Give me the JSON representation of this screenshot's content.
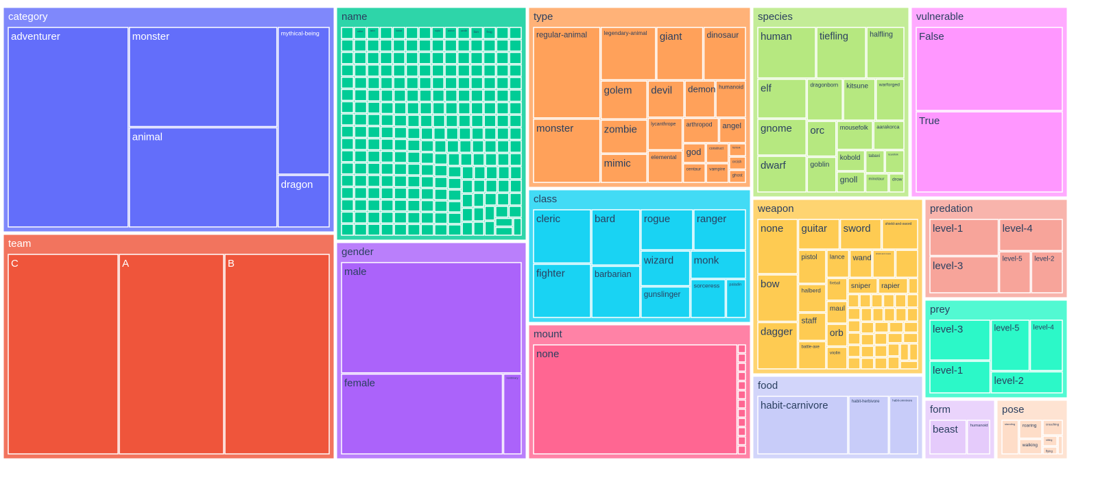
{
  "chart_data": {
    "type": "treemap",
    "title": "",
    "groups": [
      {
        "label": "category",
        "color": "#636EFA",
        "text_color": "#ffffff",
        "children": [
          {
            "label": "adventurer",
            "value": 44
          },
          {
            "label": "monster",
            "value": 27
          },
          {
            "label": "animal",
            "value": 27
          },
          {
            "label": "mythical-being",
            "value": 14
          },
          {
            "label": "dragon",
            "value": 5
          }
        ]
      },
      {
        "label": "team",
        "color": "#EF553B",
        "text_color": "#ffffff",
        "children": [
          {
            "label": "C",
            "value": 40
          },
          {
            "label": "A",
            "value": 38
          },
          {
            "label": "B",
            "value": 38
          }
        ]
      },
      {
        "label": "name",
        "color": "#00CC96",
        "text_color": "#2a3f5f",
        "children": [
          {
            "label": "leviathan",
            "value": 1
          },
          {
            "label": "nithe",
            "value": 1
          },
          {
            "label": "fafnir",
            "value": 1
          },
          {
            "label": "cyclops",
            "value": 1
          },
          {
            "label": "tiamat",
            "value": 1
          },
          {
            "label": "hoodoll",
            "value": 1
          },
          {
            "label": "abeloth",
            "value": 1
          },
          {
            "label": "raptor",
            "value": 1
          },
          {
            "label": "archon",
            "value": 1
          },
          {
            "label": "candle",
            "value": 1
          },
          {
            "label": "lion",
            "value": 1
          },
          {
            "label": "frog",
            "value": 1
          }
        ],
        "filler_count": 222
      },
      {
        "label": "gender",
        "color": "#AB63FA",
        "text_color": "#2a3f5f",
        "children": [
          {
            "label": "male",
            "value": 66
          },
          {
            "label": "female",
            "value": 43
          },
          {
            "label": "nonbinary",
            "value": 5
          }
        ]
      },
      {
        "label": "type",
        "color": "#FFA15A",
        "text_color": "#2a3f5f",
        "children": [
          {
            "label": "regular-animal",
            "value": 27
          },
          {
            "label": "monster",
            "value": 19
          },
          {
            "label": "legendary-animal",
            "value": 13
          },
          {
            "label": "giant",
            "value": 11
          },
          {
            "label": "dinosaur",
            "value": 10
          },
          {
            "label": "golem",
            "value": 8
          },
          {
            "label": "mimic",
            "value": 6
          },
          {
            "label": "demon",
            "value": 5
          },
          {
            "label": "humanoid",
            "value": 5
          },
          {
            "label": "zombie",
            "value": 7
          },
          {
            "label": "lycanthrope",
            "value": 5
          },
          {
            "label": "arthropod",
            "value": 4
          },
          {
            "label": "angel",
            "value": 3
          },
          {
            "label": "devil",
            "value": 6
          },
          {
            "label": "god",
            "value": 2
          },
          {
            "label": "centaur",
            "value": 2
          },
          {
            "label": "construct",
            "value": 2
          },
          {
            "label": "elemental",
            "value": 5
          },
          {
            "label": "vampire",
            "value": 2
          },
          {
            "label": "fishfolk",
            "value": 1
          },
          {
            "label": "orcish",
            "value": 1
          },
          {
            "label": "ghost",
            "value": 1
          }
        ]
      },
      {
        "label": "class",
        "color": "#19D3F3",
        "text_color": "#2a3f5f",
        "children": [
          {
            "label": "cleric",
            "value": 16
          },
          {
            "label": "fighter",
            "value": 16
          },
          {
            "label": "bard",
            "value": 14
          },
          {
            "label": "barbarian",
            "value": 13
          },
          {
            "label": "rogue",
            "value": 11
          },
          {
            "label": "ranger",
            "value": 11
          },
          {
            "label": "wizard",
            "value": 9
          },
          {
            "label": "gunslinger",
            "value": 8
          },
          {
            "label": "monk",
            "value": 8
          },
          {
            "label": "sorceress",
            "value": 7
          },
          {
            "label": "paladin",
            "value": 4
          }
        ]
      },
      {
        "label": "mount",
        "color": "#FF6692",
        "text_color": "#2a3f5f",
        "children": [
          {
            "label": "none",
            "value": 100
          }
        ],
        "filler_count": 12
      },
      {
        "label": "species",
        "color": "#B6E880",
        "text_color": "#2a3f5f",
        "children": [
          {
            "label": "human",
            "value": 20
          },
          {
            "label": "tiefling",
            "value": 17
          },
          {
            "label": "halfling",
            "value": 13
          },
          {
            "label": "elf",
            "value": 13
          },
          {
            "label": "gnome",
            "value": 12
          },
          {
            "label": "dwarf",
            "value": 12
          },
          {
            "label": "dragonborn",
            "value": 10
          },
          {
            "label": "kitsune",
            "value": 9
          },
          {
            "label": "warforged",
            "value": 8
          },
          {
            "label": "orc",
            "value": 7
          },
          {
            "label": "goblin",
            "value": 7
          },
          {
            "label": "aarakorca",
            "value": 6
          },
          {
            "label": "mousefolk",
            "value": 7
          },
          {
            "label": "kobold",
            "value": 4
          },
          {
            "label": "gnoll",
            "value": 4
          },
          {
            "label": "tabaxi",
            "value": 3
          },
          {
            "label": "lizardfolk",
            "value": 3
          },
          {
            "label": "minotaur",
            "value": 3
          },
          {
            "label": "drow",
            "value": 2
          }
        ]
      },
      {
        "label": "vulnerable",
        "color": "#FF97FF",
        "text_color": "#2a3f5f",
        "children": [
          {
            "label": "False",
            "value": 58
          },
          {
            "label": "True",
            "value": 56
          }
        ]
      },
      {
        "label": "weapon",
        "color": "#FECB52",
        "text_color": "#2a3f5f",
        "children": [
          {
            "label": "none",
            "value": 14
          },
          {
            "label": "bow",
            "value": 12
          },
          {
            "label": "dagger",
            "value": 12
          },
          {
            "label": "guitar",
            "value": 8
          },
          {
            "label": "sword",
            "value": 8
          },
          {
            "label": "shield-and-sword",
            "value": 7
          },
          {
            "label": "pistol",
            "value": 6
          },
          {
            "label": "halberd",
            "value": 5
          },
          {
            "label": "staff",
            "value": 5
          },
          {
            "label": "lance",
            "value": 4
          },
          {
            "label": "battle-axe",
            "value": 5
          },
          {
            "label": "wand",
            "value": 4
          },
          {
            "label": "fireball",
            "value": 3
          },
          {
            "label": "maul",
            "value": 3
          },
          {
            "label": "orb",
            "value": 3
          },
          {
            "label": "shield-and-mace",
            "value": 4
          },
          {
            "label": "violin",
            "value": 3
          },
          {
            "label": "sniper",
            "value": 3
          },
          {
            "label": "wand-and-grimoire",
            "value": 4
          },
          {
            "label": "rapier",
            "value": 3
          }
        ],
        "filler_count": 34
      },
      {
        "label": "predation",
        "color": "#F7A49A",
        "text_color": "#2a3f5f",
        "children": [
          {
            "label": "level-1",
            "value": 25
          },
          {
            "label": "level-3",
            "value": 25
          },
          {
            "label": "level-4",
            "value": 20
          },
          {
            "label": "level-5",
            "value": 13
          },
          {
            "label": "level-2",
            "value": 13
          }
        ]
      },
      {
        "label": "prey",
        "color": "#2CF8C8",
        "text_color": "#2a3f5f",
        "children": [
          {
            "label": "level-3",
            "value": 25
          },
          {
            "label": "level-1",
            "value": 20
          },
          {
            "label": "level-5",
            "value": 20
          },
          {
            "label": "level-4",
            "value": 17
          },
          {
            "label": "level-2",
            "value": 16
          }
        ]
      },
      {
        "label": "food",
        "color": "#C8CCF9",
        "text_color": "#2a3f5f",
        "children": [
          {
            "label": "habit-carnivore",
            "value": 56
          },
          {
            "label": "habit-herbivore",
            "value": 25
          },
          {
            "label": "habit-omnivore",
            "value": 18
          }
        ]
      },
      {
        "label": "form",
        "color": "#E5CBFB",
        "text_color": "#2a3f5f",
        "children": [
          {
            "label": "beast",
            "value": 70
          },
          {
            "label": "humanoid",
            "value": 44
          }
        ]
      },
      {
        "label": "pose",
        "color": "#FEDDC8",
        "text_color": "#2a3f5f",
        "children": [
          {
            "label": "standing",
            "value": 30
          },
          {
            "label": "roaring",
            "value": 22
          },
          {
            "label": "walking",
            "value": 18
          },
          {
            "label": "crouching",
            "value": 16
          },
          {
            "label": "sitting",
            "value": 8
          },
          {
            "label": "flying",
            "value": 6
          },
          {
            "label": "lying",
            "value": 5
          }
        ]
      }
    ]
  }
}
